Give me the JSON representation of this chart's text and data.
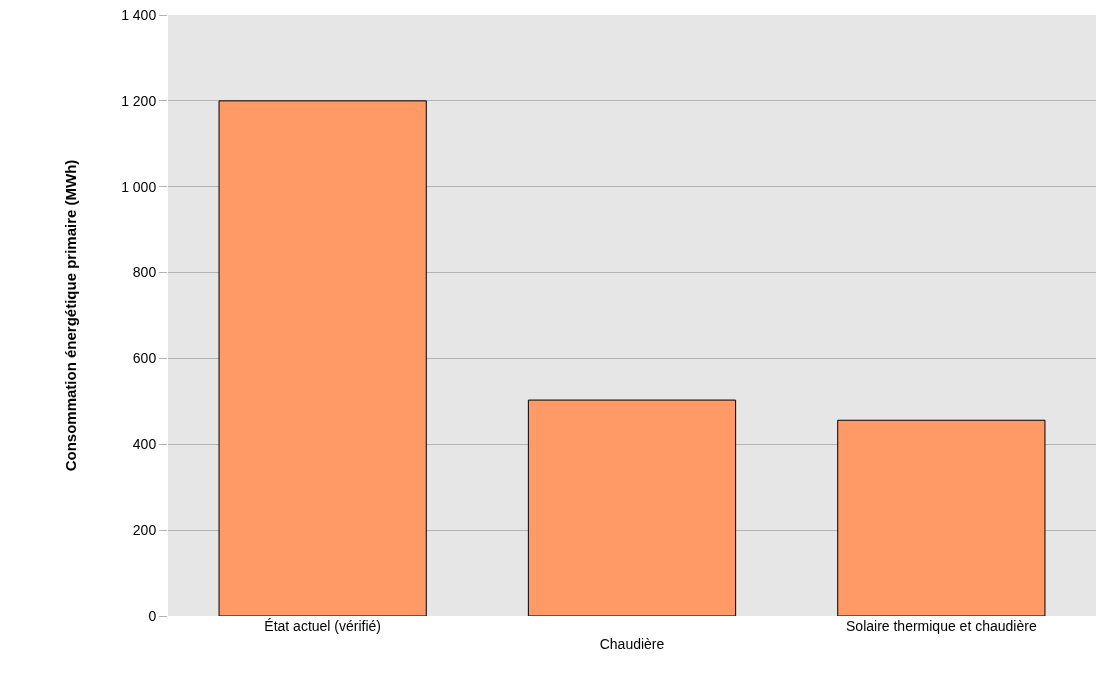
{
  "chart_data": {
    "type": "bar",
    "ylabel": "Consommation énergétique primaire (MWh)",
    "categories": [
      "État actuel (vérifié)",
      "Chaudière",
      "Solaire thermique et chaudière"
    ],
    "values": [
      1200,
      503,
      456
    ],
    "color": "#ff9966",
    "ylim": [
      0,
      1400
    ],
    "yticks": [
      {
        "value": 0,
        "label": "0"
      },
      {
        "value": 200,
        "label": "200"
      },
      {
        "value": 400,
        "label": "400"
      },
      {
        "value": 600,
        "label": "600"
      },
      {
        "value": 800,
        "label": "800"
      },
      {
        "value": 1000,
        "label": "1 000"
      },
      {
        "value": 1200,
        "label": "1 200"
      },
      {
        "value": 1400,
        "label": "1 400"
      }
    ],
    "grid": "y"
  }
}
